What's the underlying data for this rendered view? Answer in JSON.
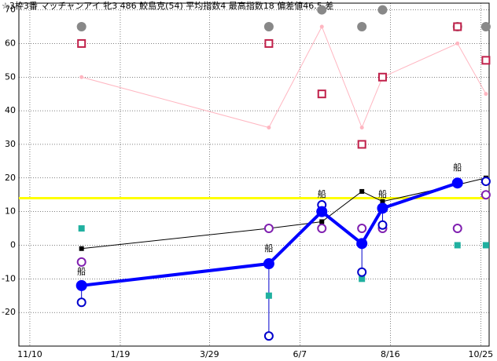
{
  "chart_data": {
    "type": "line",
    "title": "☆3枠3番 マッチャンアイ 牝3 486 鮫島克(54) 平均指数4 最高指数18 偏差値46.5 差",
    "x": [
      40,
      185,
      226,
      257,
      273,
      331,
      353
    ],
    "xlim": [
      -8.5,
      355.5
    ],
    "xticks": [
      {
        "value": 0,
        "label": "11/10"
      },
      {
        "value": 70,
        "label": "1/19"
      },
      {
        "value": 139,
        "label": "3/29"
      },
      {
        "value": 209,
        "label": "6/7"
      },
      {
        "value": 279,
        "label": "8/16"
      },
      {
        "value": 349,
        "label": "10/25"
      }
    ],
    "ylim": [
      -30,
      72
    ],
    "yticks": [
      -20,
      -10,
      0,
      10,
      20,
      30,
      40,
      50,
      60,
      70
    ],
    "grid": true,
    "reference_line": {
      "value": 14,
      "color": "#ffff00"
    },
    "series": [
      {
        "color": "#ffb6c1",
        "marker": "dot",
        "line": true,
        "values": [
          50,
          35,
          65,
          35,
          50,
          60,
          45
        ]
      },
      {
        "color": "#888888",
        "marker": "disc",
        "line": false,
        "values": [
          65,
          65,
          70,
          65,
          70,
          65,
          65
        ]
      },
      {
        "color": "#c0204a",
        "marker": "open-square",
        "line": false,
        "values": [
          60,
          60,
          45,
          30,
          50,
          65,
          55
        ]
      },
      {
        "color": "#000000",
        "marker": "square",
        "line": true,
        "values": [
          -1,
          5,
          7,
          16,
          13,
          18,
          20
        ]
      },
      {
        "color": "#20b0a0",
        "marker": "square-big",
        "line": false,
        "values": [
          5,
          -15,
          10,
          -10,
          null,
          0,
          0
        ]
      },
      {
        "color": "#8020b0",
        "marker": "open-circle",
        "line": false,
        "values": [
          -5,
          5,
          5,
          5,
          5,
          5,
          15
        ]
      },
      {
        "color": "#0000cc",
        "marker": "open-circle",
        "line": false,
        "values": [
          -17,
          -27,
          12,
          -8,
          6,
          null,
          19
        ]
      },
      {
        "color": "#0000ff",
        "marker": "disc-big",
        "line": true,
        "values": [
          -12,
          -5.5,
          10,
          0.5,
          11,
          18.5,
          null
        ]
      }
    ],
    "annotations": [
      {
        "text": "船",
        "x": 40,
        "y": -8
      },
      {
        "text": "船",
        "x": 185,
        "y": -1
      },
      {
        "text": "船",
        "x": 226,
        "y": 15
      },
      {
        "text": "船",
        "x": 273,
        "y": 15
      },
      {
        "text": "船",
        "x": 331,
        "y": 23
      }
    ]
  }
}
